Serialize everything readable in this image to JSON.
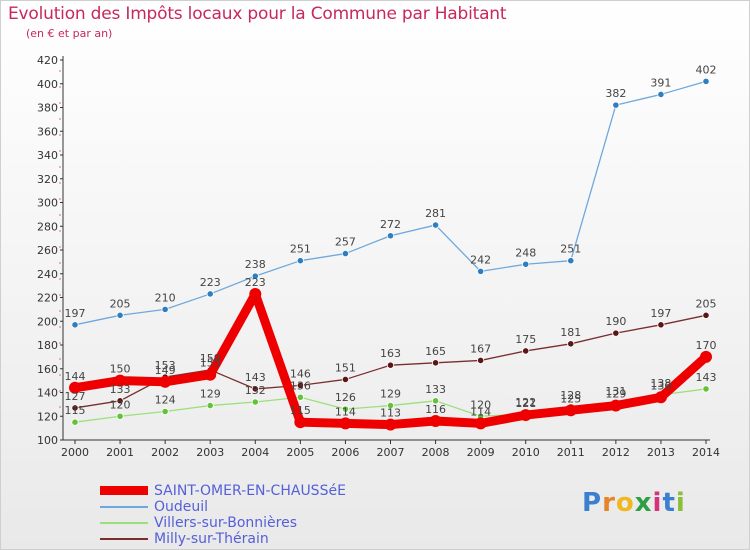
{
  "header": {
    "title": "Evolution des Impôts locaux pour la Commune par Habitant",
    "subtitle": "(en € et par an)"
  },
  "logo": {
    "letters": [
      "P",
      "r",
      "o",
      "x",
      "i",
      "t",
      "i"
    ],
    "colors": [
      "#3a7fd0",
      "#e6842a",
      "#f0b81e",
      "#2f9e44",
      "#d6337a",
      "#3a7fd0",
      "#8bbf3a"
    ]
  },
  "colors": {
    "title": "#c8285a",
    "axis": "#444444",
    "grid": "#d8d8d8"
  },
  "chart_data": {
    "type": "line",
    "title": "Evolution des Impôts locaux pour la Commune par Habitant",
    "subtitle": "(en € et par an)",
    "x": [
      2000,
      2001,
      2002,
      2003,
      2004,
      2005,
      2006,
      2007,
      2008,
      2009,
      2010,
      2011,
      2012,
      2013,
      2014
    ],
    "ylim": [
      100,
      420
    ],
    "y_ticks": [
      100,
      120,
      140,
      160,
      180,
      200,
      220,
      240,
      260,
      280,
      300,
      320,
      340,
      360,
      380,
      400,
      420
    ],
    "grid": false,
    "legend_position": "bottom-left",
    "series": [
      {
        "name": "Oudeuil",
        "color": "#6fa8dc",
        "marker": "#2f7fc0",
        "width": 1.3,
        "values": [
          197,
          205,
          210,
          223,
          238,
          251,
          257,
          272,
          281,
          242,
          248,
          251,
          382,
          391,
          402
        ]
      },
      {
        "name": "Villers-sur-Bonnières",
        "color": "#9be07a",
        "marker": "#62c23a",
        "width": 1.3,
        "values": [
          115,
          120,
          124,
          129,
          132,
          136,
          126,
          129,
          133,
          120,
          122,
          128,
          131,
          138,
          143
        ]
      },
      {
        "name": "Milly-sur-Thérain",
        "color": "#7a2e2e",
        "marker": "#5a1515",
        "width": 1.3,
        "values": [
          127,
          133,
          153,
          159,
          143,
          146,
          151,
          163,
          165,
          167,
          175,
          181,
          190,
          197,
          205
        ]
      },
      {
        "name": "SAINT-OMER-EN-CHAUSSéE",
        "color": "#ee0000",
        "marker": "#ee0000",
        "width": 9,
        "values": [
          144,
          150,
          149,
          155,
          223,
          115,
          114,
          113,
          116,
          114,
          121,
          125,
          129,
          136,
          170
        ]
      }
    ],
    "legend": [
      "SAINT-OMER-EN-CHAUSSéE",
      "Oudeuil",
      "Villers-sur-Bonnières",
      "Milly-sur-Thérain"
    ]
  }
}
